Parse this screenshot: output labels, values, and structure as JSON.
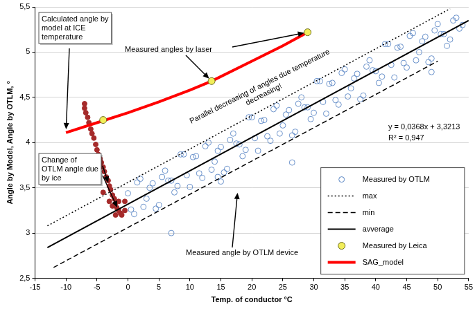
{
  "chart_data": {
    "type": "scatter",
    "x_label": "Temp. of conductor °C",
    "y_label": "Angle by Model, Angle by OTLM, °",
    "xlim": [
      -15,
      55
    ],
    "xticks": [
      -15,
      -10,
      -5,
      0,
      5,
      10,
      15,
      20,
      25,
      30,
      35,
      40,
      45,
      50,
      55
    ],
    "ylim": [
      2.5,
      5.5
    ],
    "yticks": [
      {
        "value": 2.5,
        "label": "2,5"
      },
      3,
      {
        "value": 3.5,
        "label": "3,5"
      },
      4,
      {
        "value": 4.5,
        "label": "4,5"
      },
      5,
      {
        "value": 5.5,
        "label": "5,5"
      }
    ],
    "grid": true,
    "legend": "lower right",
    "annotations": [
      "Calculated angle by model at ICE temperature",
      "Measured angles by laser",
      "Parallel decreasing of angles due temperature decreasing!",
      "y = 0,0368x + 3,3213",
      "R² = 0,947",
      "Change of OTLM angle due by ice",
      "Measured angle by OTLM device"
    ],
    "series": [
      {
        "name": "Measured by OTLM",
        "type": "scatter",
        "color": "#5b87c5",
        "marker": "open_circle",
        "x": [
          0,
          1,
          2,
          3,
          4,
          5,
          6,
          7,
          8,
          9,
          10,
          11,
          12,
          13,
          14,
          15,
          16,
          17,
          18,
          19,
          20,
          21,
          22,
          23,
          24,
          25,
          26,
          27,
          28,
          29,
          30,
          31,
          32,
          33,
          34,
          35,
          36,
          37,
          38,
          39,
          40,
          41,
          42,
          43,
          44,
          45,
          46,
          47,
          48,
          49,
          50,
          51,
          52,
          53,
          54,
          0.5,
          1.5,
          2.5,
          3.5,
          4.5,
          5.5,
          6.5,
          7.5,
          8.5,
          9.5,
          10.5,
          11.5,
          12.5,
          13.5,
          14.5,
          15.5,
          16.5,
          17.5,
          18.5,
          19.5,
          20.5,
          21.5,
          22.5,
          23.5,
          24.5,
          25.5,
          26.5,
          27.5,
          28.5,
          29.5,
          30.5,
          31.5,
          32.5,
          33.5,
          34.5,
          35.5,
          36.5,
          37.5,
          38.5,
          39.5,
          40.5,
          41.5,
          42.5,
          43.5,
          44.5,
          45.5,
          46.5,
          47.5,
          48.5,
          49.5,
          50.5,
          51.5,
          52.5,
          53.5,
          7,
          14.5,
          15,
          26.5,
          49
        ],
        "values": [
          3.44,
          3.21,
          3.6,
          3.38,
          3.55,
          3.31,
          3.69,
          3.58,
          3.52,
          3.87,
          3.51,
          3.85,
          3.61,
          4.0,
          3.79,
          3.95,
          3.71,
          4.1,
          3.98,
          3.92,
          4.28,
          3.91,
          4.25,
          4.02,
          4.41,
          4.19,
          4.36,
          4.12,
          4.5,
          4.39,
          4.33,
          4.68,
          4.32,
          4.66,
          4.42,
          4.81,
          4.6,
          4.76,
          4.52,
          4.91,
          4.79,
          4.73,
          5.09,
          4.72,
          5.06,
          4.83,
          5.21,
          5.0,
          5.17,
          4.93,
          5.31,
          5.2,
          5.14,
          5.38,
          5.3,
          3.26,
          3.56,
          3.29,
          3.5,
          3.27,
          3.62,
          3.58,
          3.45,
          3.87,
          3.64,
          3.84,
          3.66,
          3.96,
          3.7,
          3.91,
          3.67,
          4.03,
          3.99,
          3.85,
          4.28,
          4.05,
          4.24,
          4.07,
          4.37,
          4.1,
          4.31,
          4.08,
          4.43,
          4.39,
          4.26,
          4.68,
          4.45,
          4.65,
          4.47,
          4.77,
          4.51,
          4.71,
          4.48,
          4.84,
          4.8,
          4.66,
          5.09,
          4.86,
          5.05,
          4.88,
          5.18,
          4.91,
          5.12,
          4.89,
          5.24,
          5.2,
          5.07,
          5.35,
          5.26,
          3.0,
          3.62,
          3.57,
          3.78,
          4.78
        ]
      },
      {
        "name": "max",
        "type": "line",
        "color": "#000000",
        "marker": "none",
        "line_style": "dotted",
        "x": [
          -13,
          52
        ],
        "values": [
          3.08,
          5.48
        ]
      },
      {
        "name": "min",
        "type": "line",
        "color": "#000000",
        "marker": "none",
        "line_style": "dashed",
        "x": [
          -12,
          50
        ],
        "values": [
          2.62,
          4.9
        ]
      },
      {
        "name": "avverage",
        "type": "line",
        "color": "#000000",
        "marker": "none",
        "line_style": "solid",
        "x": [
          -13,
          55
        ],
        "values": [
          2.84,
          5.35
        ]
      },
      {
        "name": "Measured by Leica",
        "type": "scatter",
        "color": "#f2ee5a",
        "marker": "circle",
        "x": [
          -4,
          13.5,
          29
        ],
        "values": [
          4.25,
          4.68,
          5.22
        ]
      },
      {
        "name": "SAG_model",
        "type": "line",
        "color": "#ff0000",
        "marker": "none",
        "line_style": "solid",
        "x": [
          -10,
          -5,
          0,
          5,
          10,
          13.5,
          20,
          25,
          29
        ],
        "values": [
          4.11,
          4.22,
          4.33,
          4.45,
          4.58,
          4.68,
          4.9,
          5.07,
          5.22
        ]
      },
      {
        "type": "scatter",
        "color": "#a52a2a",
        "marker": "circle",
        "x": [
          -7,
          -7,
          -6.8,
          -6.5,
          -6.3,
          -6,
          -5.8,
          -5.5,
          -5.2,
          -5,
          -4.8,
          -4.5,
          -4.3,
          -4,
          -3.8,
          -3.5,
          -3.2,
          -3,
          -2.8,
          -2.5,
          -2.2,
          -2,
          -1.8,
          -1.5,
          -1.2,
          -1,
          -0.5,
          -0.5,
          -3,
          -2.5,
          -1.5,
          -2,
          -4
        ],
        "values": [
          4.43,
          4.38,
          4.33,
          4.28,
          4.22,
          4.15,
          4.1,
          4.05,
          3.98,
          3.92,
          3.87,
          3.82,
          3.78,
          3.73,
          3.68,
          3.62,
          3.58,
          3.52,
          3.48,
          3.42,
          3.38,
          3.33,
          3.28,
          3.25,
          3.22,
          3.2,
          3.25,
          3.35,
          3.35,
          3.3,
          3.35,
          3.2,
          3.45
        ]
      }
    ]
  }
}
